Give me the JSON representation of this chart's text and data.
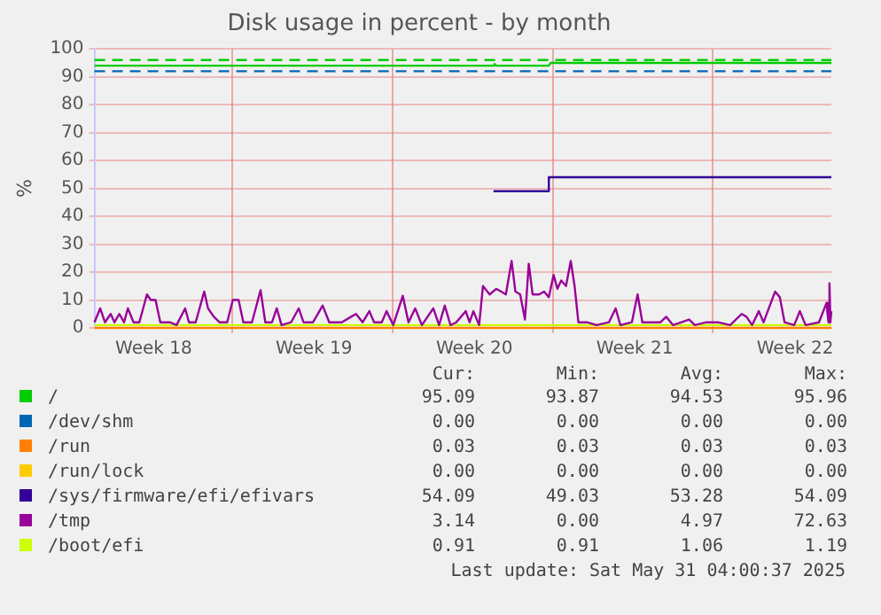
{
  "chart_data": {
    "type": "line",
    "title": "Disk usage in percent - by month",
    "ylabel": "%",
    "xlim": [
      "2025-04-29T00:00",
      "2025-05-31T04:00"
    ],
    "xticks": [
      {
        "value": "2025-05-01T14:00",
        "label": "Week 18"
      },
      {
        "value": "2025-05-05T00:00",
        "label": null
      },
      {
        "value": "2025-05-08T14:00",
        "label": "Week 19"
      },
      {
        "value": "2025-05-12T00:00",
        "label": null
      },
      {
        "value": "2025-05-15T14:00",
        "label": "Week 20"
      },
      {
        "value": "2025-05-19T00:00",
        "label": null
      },
      {
        "value": "2025-05-22T14:00",
        "label": "Week 21"
      },
      {
        "value": "2025-05-26T00:00",
        "label": null
      },
      {
        "value": "2025-05-29T14:00",
        "label": "Week 22"
      }
    ],
    "ylim": [
      0,
      100
    ],
    "yticks": [
      0,
      10,
      20,
      30,
      40,
      50,
      60,
      70,
      80,
      90,
      100
    ],
    "grid": true,
    "legend": "bottom",
    "series": [
      {
        "name": "/",
        "color": "#00cc00",
        "x": [
          "2025-04-29T00:00",
          "2025-05-16T10:00",
          "2025-05-16T11:00",
          "2025-05-16T13:00",
          "2025-05-18T20:00",
          "2025-05-18T22:00",
          "2025-05-31T04:00"
        ],
        "values": [
          94,
          94,
          94.6,
          94,
          94,
          95,
          95
        ]
      },
      {
        "name": "/dev/shm",
        "color": "#0066b3"
      },
      {
        "name": "/run",
        "color": "#ff8000",
        "x": [
          "2025-04-29T00:00",
          "2025-05-31T04:00"
        ],
        "values": [
          0,
          0
        ]
      },
      {
        "name": "/run/lock",
        "color": "#ffcc00"
      },
      {
        "name": "/sys/firmware/efi/efivars",
        "color": "#330099",
        "x": [
          "2025-05-16T10:00",
          "2025-05-18T19:00",
          "2025-05-18T20:00",
          "2025-05-31T04:00"
        ],
        "values": [
          49,
          49,
          54,
          54
        ]
      },
      {
        "name": "/tmp",
        "color": "#990099",
        "x": [
          "2025-04-29T00:00",
          "2025-04-29T06:00",
          "2025-04-29T11:00",
          "2025-04-29T17:00",
          "2025-04-29T21:00",
          "2025-04-30T02:00",
          "2025-04-30T07:00",
          "2025-04-30T11:00",
          "2025-04-30T17:00",
          "2025-04-30T23:00",
          "2025-05-01T07:00",
          "2025-05-01T11:00",
          "2025-05-01T16:00",
          "2025-05-01T21:00",
          "2025-05-02T07:00",
          "2025-05-02T14:00",
          "2025-05-02T23:00",
          "2025-05-03T03:00",
          "2025-05-03T10:00",
          "2025-05-03T19:00",
          "2025-05-03T23:00",
          "2025-05-04T05:00",
          "2025-05-04T11:00",
          "2025-05-04T19:00",
          "2025-05-05T01:00",
          "2025-05-05T07:00",
          "2025-05-05T12:00",
          "2025-05-05T21:00",
          "2025-05-06T06:00",
          "2025-05-06T11:00",
          "2025-05-06T18:00",
          "2025-05-06T23:00",
          "2025-05-07T04:00",
          "2025-05-07T14:00",
          "2025-05-07T22:00",
          "2025-05-08T03:00",
          "2025-05-08T13:00",
          "2025-05-08T23:00",
          "2025-05-09T06:00",
          "2025-05-09T19:00",
          "2025-05-10T05:00",
          "2025-05-10T10:00",
          "2025-05-10T17:00",
          "2025-05-11T00:00",
          "2025-05-11T05:00",
          "2025-05-11T13:00",
          "2025-05-11T18:00",
          "2025-05-12T01:00",
          "2025-05-12T11:00",
          "2025-05-12T17:00",
          "2025-05-13T00:00",
          "2025-05-13T07:00",
          "2025-05-13T19:00",
          "2025-05-14T01:00",
          "2025-05-14T07:00",
          "2025-05-14T13:00",
          "2025-05-14T19:00",
          "2025-05-15T05:00",
          "2025-05-15T09:00",
          "2025-05-15T13:00",
          "2025-05-15T19:00",
          "2025-05-15T23:00",
          "2025-05-16T06:00",
          "2025-05-16T13:00",
          "2025-05-16T18:00",
          "2025-05-16T23:00",
          "2025-05-17T05:00",
          "2025-05-17T09:00",
          "2025-05-17T14:00",
          "2025-05-17T19:00",
          "2025-05-17T23:00",
          "2025-05-18T03:00",
          "2025-05-18T10:00",
          "2025-05-18T15:00",
          "2025-05-18T20:00",
          "2025-05-19T01:00",
          "2025-05-19T05:00",
          "2025-05-19T09:00",
          "2025-05-19T14:00",
          "2025-05-19T19:00",
          "2025-05-19T23:00",
          "2025-05-20T03:00",
          "2025-05-20T12:00",
          "2025-05-20T22:00",
          "2025-05-21T11:00",
          "2025-05-21T18:00",
          "2025-05-21T23:00",
          "2025-05-22T11:00",
          "2025-05-22T17:00",
          "2025-05-22T22:00",
          "2025-05-23T10:00",
          "2025-05-23T17:00",
          "2025-05-23T23:00",
          "2025-05-24T06:00",
          "2025-05-24T23:00",
          "2025-05-25T05:00",
          "2025-05-25T17:00",
          "2025-05-26T05:00",
          "2025-05-26T18:00",
          "2025-05-27T06:00",
          "2025-05-27T11:00",
          "2025-05-27T17:00",
          "2025-05-28T00:00",
          "2025-05-28T05:00",
          "2025-05-28T17:00",
          "2025-05-28T22:00",
          "2025-05-29T03:00",
          "2025-05-29T13:00",
          "2025-05-29T19:00",
          "2025-05-30T01:00",
          "2025-05-30T15:00",
          "2025-05-30T23:00",
          "2025-05-31T00:00",
          "2025-05-31T01:00",
          "2025-05-31T02:00",
          "2025-05-31T03:00",
          "2025-05-31T04:00"
        ],
        "values": [
          2,
          7,
          2,
          5,
          2,
          5,
          2,
          7,
          2,
          2,
          12,
          10,
          10,
          2,
          2,
          1,
          7,
          2,
          2,
          13,
          7,
          4,
          2,
          2,
          10,
          10,
          2,
          2,
          13.5,
          2,
          2,
          7,
          1,
          2,
          7,
          2,
          2,
          8,
          2,
          2,
          4,
          5,
          2,
          6,
          2,
          2,
          6,
          1,
          11.5,
          2,
          7,
          1,
          7,
          1,
          8,
          1,
          2,
          6,
          2,
          6,
          1,
          15,
          12,
          14,
          13,
          12,
          24,
          13,
          12,
          3,
          23,
          12,
          12,
          13,
          11,
          19,
          14,
          17,
          15,
          24,
          15,
          2,
          2,
          1,
          2,
          7,
          1,
          2,
          12,
          2,
          2,
          2,
          4,
          1,
          3,
          1,
          2,
          2,
          1,
          5,
          4,
          1,
          6,
          2,
          13,
          11,
          2,
          1,
          6,
          1,
          2,
          9,
          5,
          2,
          16,
          2,
          6
        ]
      },
      {
        "name": "/boot/efi",
        "color": "#ccff00",
        "x": [
          "2025-04-29T00:00",
          "2025-05-31T04:00"
        ],
        "values": [
          1,
          1
        ]
      }
    ],
    "ref_lines": [
      {
        "axis": "y",
        "value": 96,
        "color": "#00cc00",
        "line_style": "dashed"
      },
      {
        "axis": "y",
        "value": 92,
        "color": "#0066b3",
        "line_style": "dashed"
      }
    ],
    "annotations": [
      "Cur:",
      "Min:",
      "Avg:",
      "Max:",
      "95.09",
      "93.87",
      "94.53",
      "95.96",
      "0.00",
      "0.00",
      "0.00",
      "0.00",
      "0.03",
      "0.03",
      "0.03",
      "0.03",
      "0.00",
      "0.00",
      "0.00",
      "0.00",
      "54.09",
      "49.03",
      "53.28",
      "54.09",
      "3.14",
      "0.00",
      "4.97",
      "72.63",
      "0.91",
      "0.91",
      "1.06",
      "1.19",
      "Last update: Sat May 31 04:00:37 2025"
    ]
  }
}
